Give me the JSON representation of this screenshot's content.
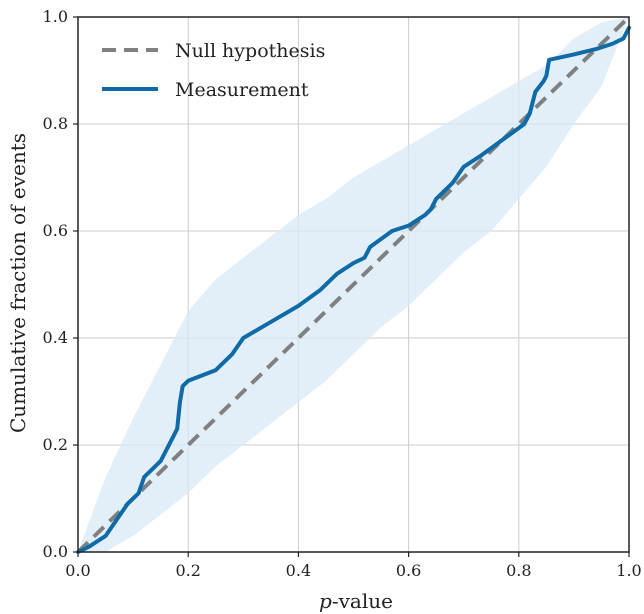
{
  "chart_data": {
    "type": "line",
    "xlabel_italic": "p",
    "xlabel_rest": "-value",
    "ylabel": "Cumulative fraction of events",
    "xlim": [
      0,
      1
    ],
    "ylim": [
      0,
      1
    ],
    "grid": true,
    "legend_position": "top-left",
    "x_ticks": [
      0.0,
      0.2,
      0.4,
      0.6,
      0.8,
      1.0
    ],
    "y_ticks": [
      0.0,
      0.2,
      0.4,
      0.6,
      0.8,
      1.0
    ],
    "x_tick_labels": [
      "0.0",
      "0.2",
      "0.4",
      "0.6",
      "0.8",
      "1.0"
    ],
    "y_tick_labels": [
      "0.0",
      "0.2",
      "0.4",
      "0.6",
      "0.8",
      "1.0"
    ],
    "series": [
      {
        "name": "Null hypothesis",
        "style": "dashed",
        "color": "#808080",
        "x": [
          0,
          1
        ],
        "y": [
          0,
          1
        ]
      },
      {
        "name": "Measurement",
        "style": "solid",
        "color": "#0f6aa8",
        "x": [
          0.0,
          0.02,
          0.05,
          0.07,
          0.09,
          0.11,
          0.12,
          0.15,
          0.17,
          0.18,
          0.185,
          0.19,
          0.2,
          0.25,
          0.28,
          0.3,
          0.35,
          0.4,
          0.44,
          0.47,
          0.5,
          0.52,
          0.53,
          0.57,
          0.6,
          0.63,
          0.64,
          0.65,
          0.68,
          0.7,
          0.73,
          0.77,
          0.81,
          0.82,
          0.83,
          0.845,
          0.85,
          0.855,
          0.9,
          0.94,
          0.97,
          0.99,
          1.0
        ],
        "y": [
          0.0,
          0.01,
          0.03,
          0.06,
          0.09,
          0.11,
          0.14,
          0.17,
          0.21,
          0.23,
          0.28,
          0.31,
          0.32,
          0.34,
          0.37,
          0.4,
          0.43,
          0.46,
          0.49,
          0.52,
          0.54,
          0.55,
          0.57,
          0.6,
          0.61,
          0.63,
          0.64,
          0.66,
          0.69,
          0.72,
          0.74,
          0.77,
          0.8,
          0.82,
          0.86,
          0.88,
          0.89,
          0.92,
          0.93,
          0.94,
          0.95,
          0.96,
          0.98
        ]
      }
    ],
    "band": {
      "color": "#d8e9f5",
      "x": [
        0.0,
        0.05,
        0.1,
        0.15,
        0.2,
        0.25,
        0.3,
        0.35,
        0.4,
        0.45,
        0.5,
        0.55,
        0.6,
        0.65,
        0.7,
        0.75,
        0.8,
        0.85,
        0.9,
        0.95,
        1.0
      ],
      "upper": [
        0.0,
        0.14,
        0.25,
        0.35,
        0.45,
        0.51,
        0.55,
        0.59,
        0.63,
        0.66,
        0.7,
        0.73,
        0.76,
        0.79,
        0.82,
        0.85,
        0.88,
        0.91,
        0.96,
        0.99,
        1.0
      ],
      "lower": [
        0.0,
        0.0,
        0.03,
        0.07,
        0.11,
        0.16,
        0.2,
        0.24,
        0.28,
        0.32,
        0.37,
        0.42,
        0.46,
        0.51,
        0.56,
        0.6,
        0.66,
        0.72,
        0.8,
        0.87,
        1.0
      ]
    }
  }
}
